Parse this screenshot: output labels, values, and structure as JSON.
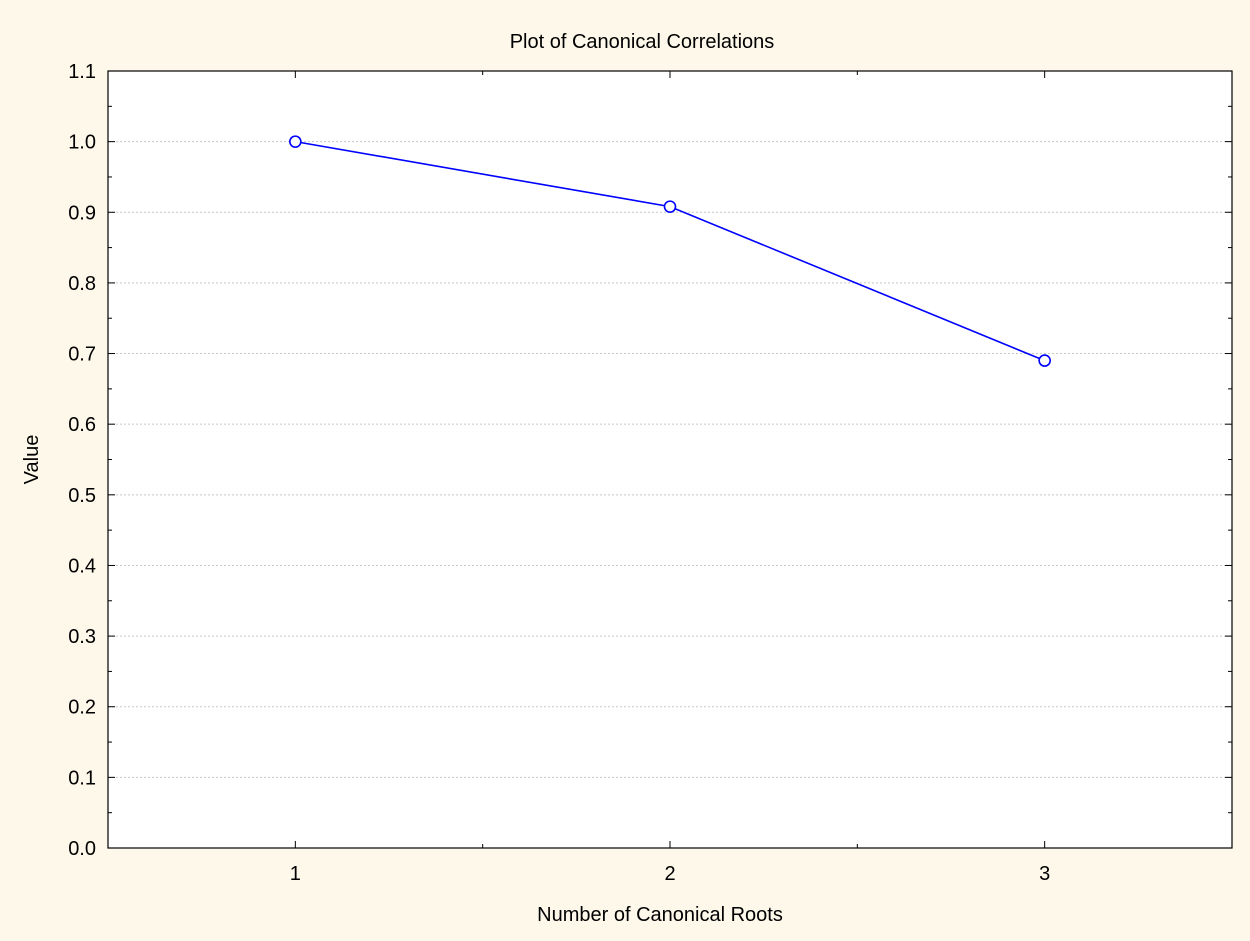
{
  "chart_data": {
    "type": "line",
    "title": "Plot of Canonical Correlations",
    "xlabel": "Number of Canonical Roots",
    "ylabel": "Value",
    "categories": [
      "1",
      "2",
      "3"
    ],
    "series": [
      {
        "values": [
          1.0,
          0.908,
          0.69
        ]
      }
    ],
    "ylim": [
      0.0,
      1.1
    ],
    "xlim": [
      0.5,
      3.5
    ],
    "yticks": [
      "0.0",
      "0.1",
      "0.2",
      "0.3",
      "0.4",
      "0.5",
      "0.6",
      "0.7",
      "0.8",
      "0.9",
      "1.0",
      "1.1"
    ],
    "grid": true,
    "legend": "none",
    "colors": {
      "line": "#0000ff",
      "marker_fill": "#ffffff",
      "grid": "#c8c8c8",
      "background": "#fdf8ea",
      "plot_background": "#ffffff"
    },
    "marker": "circle"
  }
}
